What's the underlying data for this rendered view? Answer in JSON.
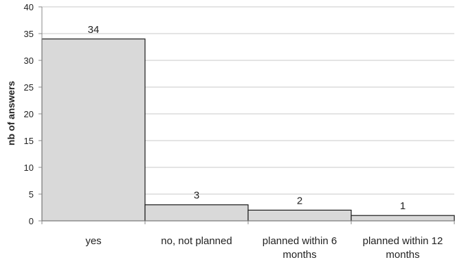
{
  "chart_data": {
    "type": "bar",
    "categories": [
      [
        "yes"
      ],
      [
        "no, not planned"
      ],
      [
        "planned within 6",
        "months"
      ],
      [
        "planned within 12",
        "months"
      ]
    ],
    "values": [
      34,
      3,
      2,
      1
    ],
    "data_labels": [
      "34",
      "3",
      "2",
      "1"
    ],
    "ylabel": "nb of answers",
    "xlabel": "",
    "ylim": [
      0,
      40
    ],
    "yticks": [
      0,
      5,
      10,
      15,
      20,
      25,
      30,
      35,
      40
    ],
    "grid": true,
    "legend": "none",
    "bar_fill": "#d9d9d9",
    "bar_stroke": "#1a1a1a",
    "grid_color": "#c8c8c8",
    "axis_color": "#888888"
  }
}
